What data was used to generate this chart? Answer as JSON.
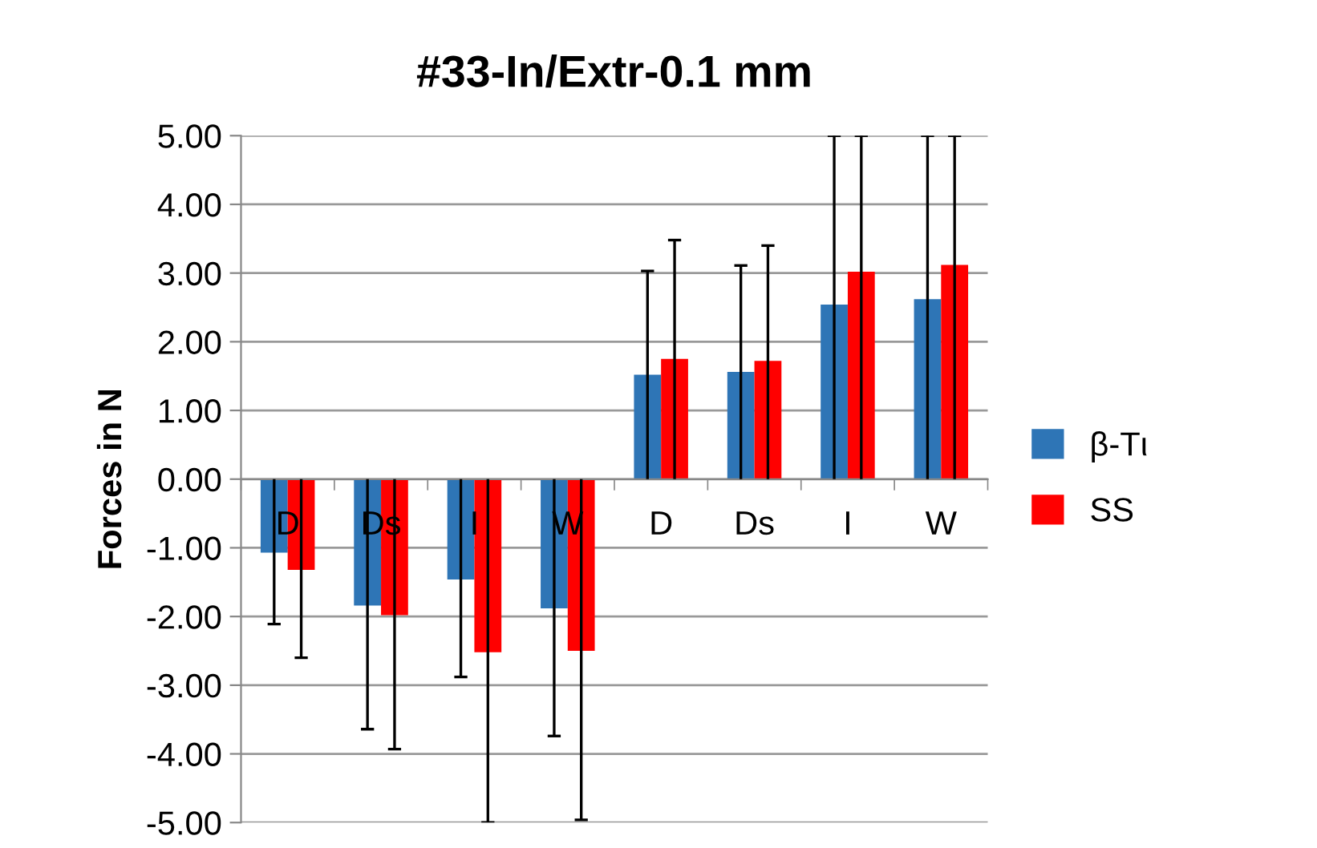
{
  "chart_data": {
    "type": "bar",
    "title": "#33-In/Extr-0.1 mm",
    "ylabel": "Forces in N",
    "categories": [
      "D",
      "Ds",
      "I",
      "W",
      "D",
      "Ds",
      "I",
      "W"
    ],
    "series": [
      {
        "name": "β-Tι",
        "color": "#2e75b6",
        "values": [
          -1.07,
          -1.84,
          -1.46,
          -1.88,
          1.52,
          1.56,
          2.54,
          2.62
        ],
        "errors": [
          [
            -2.11,
            0
          ],
          [
            -3.64,
            0
          ],
          [
            -2.88,
            0
          ],
          [
            -3.74,
            0
          ],
          [
            0,
            3.03
          ],
          [
            0,
            3.11
          ],
          [
            0,
            5.0
          ],
          [
            0,
            5.0
          ]
        ]
      },
      {
        "name": "SS",
        "color": "#ff0000",
        "values": [
          -1.32,
          -1.98,
          -2.52,
          -2.5,
          1.75,
          1.72,
          3.02,
          3.12
        ],
        "errors": [
          [
            -2.6,
            0
          ],
          [
            -3.93,
            0
          ],
          [
            -5.0,
            0
          ],
          [
            -4.96,
            0
          ],
          [
            0,
            3.48
          ],
          [
            0,
            3.4
          ],
          [
            0,
            5.0
          ],
          [
            0,
            5.0
          ]
        ]
      }
    ],
    "ylim": [
      -5,
      5
    ],
    "yticks": [
      {
        "value": -5,
        "label": "-5.00"
      },
      {
        "value": -4,
        "label": "-4.00"
      },
      {
        "value": -3,
        "label": "-3.00"
      },
      {
        "value": -2,
        "label": "-2.00"
      },
      {
        "value": -1,
        "label": "-1.00"
      },
      {
        "value": 0,
        "label": "0.00"
      },
      {
        "value": 1,
        "label": "1.00"
      },
      {
        "value": 2,
        "label": "2.00"
      },
      {
        "value": 3,
        "label": "3.00"
      },
      {
        "value": 4,
        "label": "4.00"
      },
      {
        "value": 5,
        "label": "5.00"
      }
    ],
    "grid": "y",
    "legend": "right"
  }
}
